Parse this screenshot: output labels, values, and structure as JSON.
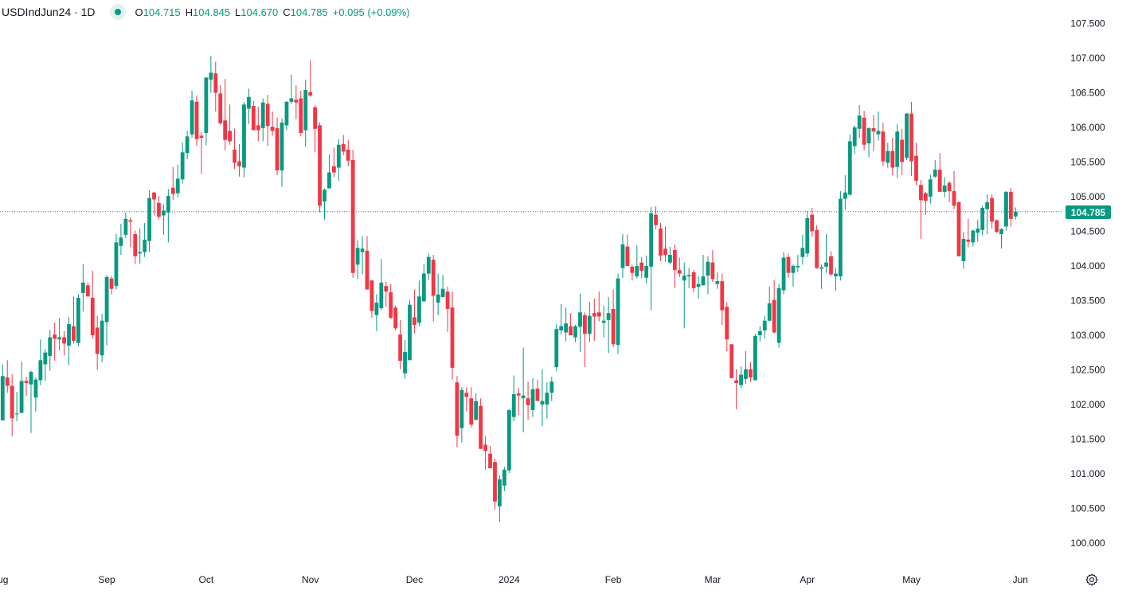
{
  "header": {
    "symbol": "USDIndJun24 · 1D",
    "status_icon": "market-open-dot-icon",
    "o_label": "O",
    "o_value": "104.715",
    "h_label": "H",
    "h_value": "104.845",
    "l_label": "L",
    "l_value": "104.670",
    "c_label": "C",
    "c_value": "104.785",
    "change": "+0.095 (+0.09%)"
  },
  "price_tag": "104.785",
  "settings_icon": "gear-icon",
  "colors": {
    "up": "#089981",
    "down": "#F23645",
    "price_line": "#089981"
  },
  "chart_data": {
    "type": "candlestick",
    "title": "",
    "ylim": [
      100.0,
      107.5
    ],
    "grid": false,
    "last_price": 104.785,
    "y_ticks": [
      "100.000",
      "100.500",
      "101.000",
      "101.500",
      "102.000",
      "102.500",
      "103.000",
      "103.500",
      "104.000",
      "104.500",
      "105.000",
      "105.500",
      "106.000",
      "106.500",
      "107.000",
      "107.500"
    ],
    "x_ticks": [
      {
        "label": "Aug",
        "bar": -0.6
      },
      {
        "label": "Sep",
        "bar": 22
      },
      {
        "label": "Oct",
        "bar": 43
      },
      {
        "label": "Nov",
        "bar": 65
      },
      {
        "label": "Dec",
        "bar": 87
      },
      {
        "label": "2024",
        "bar": 107
      },
      {
        "label": "Feb",
        "bar": 129
      },
      {
        "label": "Mar",
        "bar": 150
      },
      {
        "label": "Apr",
        "bar": 170
      },
      {
        "label": "May",
        "bar": 192
      },
      {
        "label": "Jun",
        "bar": 215
      }
    ],
    "ohlc_fields": [
      "open",
      "high",
      "low",
      "close"
    ],
    "candles": [
      [
        101.77,
        102.58,
        101.77,
        102.41
      ],
      [
        102.39,
        102.64,
        102.17,
        102.27
      ],
      [
        102.27,
        102.44,
        101.54,
        101.8
      ],
      [
        101.86,
        102.18,
        101.76,
        101.87
      ],
      [
        101.88,
        102.62,
        101.87,
        102.34
      ],
      [
        102.34,
        102.4,
        102.12,
        102.31
      ],
      [
        102.29,
        102.49,
        101.59,
        102.47
      ],
      [
        102.1,
        102.39,
        101.9,
        102.36
      ],
      [
        102.35,
        102.94,
        102.28,
        102.64
      ],
      [
        102.58,
        102.8,
        102.34,
        102.75
      ],
      [
        102.7,
        103.08,
        102.49,
        102.97
      ],
      [
        103.01,
        103.18,
        102.63,
        102.95
      ],
      [
        102.94,
        103.25,
        102.78,
        102.97
      ],
      [
        102.97,
        103.06,
        102.71,
        102.88
      ],
      [
        102.85,
        103.26,
        102.57,
        103.16
      ],
      [
        103.13,
        103.56,
        102.88,
        102.92
      ],
      [
        102.89,
        103.59,
        102.84,
        103.54
      ],
      [
        103.61,
        104.03,
        103.34,
        103.76
      ],
      [
        103.72,
        103.76,
        103.56,
        103.56
      ],
      [
        103.54,
        103.93,
        102.95,
        103.0
      ],
      [
        103.11,
        103.28,
        102.5,
        102.73
      ],
      [
        102.71,
        103.31,
        102.61,
        103.21
      ],
      [
        103.19,
        103.87,
        102.85,
        103.84
      ],
      [
        103.82,
        103.85,
        103.59,
        103.67
      ],
      [
        103.71,
        104.46,
        103.66,
        104.34
      ],
      [
        104.29,
        104.61,
        104.16,
        104.41
      ],
      [
        104.45,
        104.77,
        104.4,
        104.68
      ],
      [
        104.66,
        104.7,
        104.27,
        104.64
      ],
      [
        104.46,
        104.51,
        104.03,
        104.14
      ],
      [
        104.18,
        104.54,
        104.03,
        104.2
      ],
      [
        104.2,
        104.62,
        104.13,
        104.38
      ],
      [
        104.36,
        105.09,
        104.2,
        104.98
      ],
      [
        105.06,
        105.07,
        104.73,
        104.96
      ],
      [
        104.91,
        105.01,
        104.67,
        104.71
      ],
      [
        104.73,
        104.89,
        104.45,
        104.8
      ],
      [
        104.77,
        105.11,
        104.34,
        105.01
      ],
      [
        105.13,
        105.43,
        104.95,
        105.04
      ],
      [
        105.05,
        105.46,
        104.99,
        105.26
      ],
      [
        105.25,
        105.78,
        105.19,
        105.64
      ],
      [
        105.63,
        105.95,
        105.54,
        105.87
      ],
      [
        105.9,
        106.53,
        105.85,
        106.39
      ],
      [
        106.37,
        106.46,
        105.73,
        105.83
      ],
      [
        105.88,
        105.93,
        105.33,
        105.85
      ],
      [
        105.92,
        106.72,
        105.74,
        106.72
      ],
      [
        106.69,
        107.03,
        106.5,
        106.79
      ],
      [
        106.78,
        106.95,
        106.23,
        106.5
      ],
      [
        106.49,
        106.61,
        106.04,
        106.06
      ],
      [
        106.1,
        106.7,
        105.67,
        105.82
      ],
      [
        105.95,
        106.33,
        105.75,
        105.8
      ],
      [
        105.68,
        105.98,
        105.4,
        105.49
      ],
      [
        105.51,
        105.76,
        105.29,
        105.44
      ],
      [
        105.42,
        106.37,
        105.28,
        106.33
      ],
      [
        106.27,
        106.56,
        106.05,
        106.44
      ],
      [
        106.31,
        106.38,
        105.96,
        105.96
      ],
      [
        106.03,
        106.3,
        105.8,
        105.96
      ],
      [
        105.99,
        106.42,
        105.8,
        106.36
      ],
      [
        106.34,
        106.47,
        105.73,
        106.02
      ],
      [
        106.01,
        106.23,
        105.88,
        105.95
      ],
      [
        105.99,
        106.14,
        105.31,
        105.38
      ],
      [
        105.38,
        106.13,
        105.14,
        106.07
      ],
      [
        106.03,
        106.38,
        105.96,
        106.37
      ],
      [
        106.37,
        106.76,
        106.34,
        106.42
      ],
      [
        106.4,
        106.61,
        106.12,
        106.36
      ],
      [
        106.42,
        106.53,
        105.87,
        105.92
      ],
      [
        105.96,
        106.69,
        105.72,
        106.54
      ],
      [
        106.51,
        106.97,
        106.44,
        106.46
      ],
      [
        106.29,
        106.32,
        105.64,
        105.98
      ],
      [
        106.03,
        106.07,
        104.77,
        104.87
      ],
      [
        104.93,
        105.12,
        104.67,
        105.1
      ],
      [
        105.12,
        105.61,
        105.12,
        105.35
      ],
      [
        105.44,
        105.71,
        105.28,
        105.35
      ],
      [
        105.42,
        105.83,
        105.23,
        105.75
      ],
      [
        105.76,
        105.89,
        105.6,
        105.65
      ],
      [
        105.68,
        105.82,
        105.44,
        105.52
      ],
      [
        105.53,
        105.68,
        103.83,
        103.9
      ],
      [
        104.02,
        104.37,
        103.81,
        104.26
      ],
      [
        104.2,
        104.43,
        103.88,
        104.25
      ],
      [
        104.22,
        104.43,
        103.66,
        103.66
      ],
      [
        103.79,
        103.8,
        103.25,
        103.35
      ],
      [
        103.29,
        103.59,
        103.06,
        103.47
      ],
      [
        103.39,
        104.1,
        103.36,
        103.76
      ],
      [
        103.71,
        103.77,
        103.41,
        103.63
      ],
      [
        103.62,
        103.74,
        103.24,
        103.25
      ],
      [
        103.4,
        103.43,
        103.07,
        103.1
      ],
      [
        103.01,
        103.22,
        102.51,
        102.63
      ],
      [
        102.45,
        102.93,
        102.37,
        102.76
      ],
      [
        102.64,
        103.51,
        102.64,
        103.44
      ],
      [
        103.26,
        103.66,
        103.03,
        103.15
      ],
      [
        103.18,
        103.79,
        103.13,
        103.56
      ],
      [
        103.49,
        104.03,
        103.48,
        103.89
      ],
      [
        103.89,
        104.18,
        103.8,
        104.13
      ],
      [
        104.09,
        104.16,
        103.2,
        103.57
      ],
      [
        103.47,
        103.89,
        103.29,
        103.59
      ],
      [
        103.55,
        103.87,
        103.55,
        103.67
      ],
      [
        103.63,
        103.7,
        103.05,
        103.38
      ],
      [
        103.4,
        103.63,
        102.36,
        102.53
      ],
      [
        102.32,
        102.41,
        101.38,
        101.55
      ],
      [
        101.66,
        102.25,
        101.45,
        102.21
      ],
      [
        102.17,
        102.25,
        101.9,
        102.11
      ],
      [
        102.09,
        102.25,
        101.67,
        101.71
      ],
      [
        101.78,
        102.16,
        101.77,
        102.05
      ],
      [
        101.98,
        102.09,
        101.36,
        101.36
      ],
      [
        101.42,
        101.54,
        101.06,
        101.33
      ],
      [
        101.29,
        101.4,
        101.08,
        101.08
      ],
      [
        101.17,
        101.22,
        100.48,
        100.6
      ],
      [
        100.53,
        100.98,
        100.3,
        100.92
      ],
      [
        100.83,
        101.1,
        100.75,
        101.06
      ],
      [
        101.05,
        101.93,
        101.01,
        101.92
      ],
      [
        101.82,
        102.42,
        101.76,
        102.15
      ],
      [
        102.16,
        102.24,
        101.85,
        102.13
      ],
      [
        102.09,
        102.82,
        101.6,
        102.13
      ],
      [
        102.09,
        102.33,
        101.78,
        101.99
      ],
      [
        101.92,
        102.38,
        101.82,
        102.22
      ],
      [
        102.23,
        102.36,
        102.05,
        102.05
      ],
      [
        102.0,
        102.51,
        101.69,
        102.05
      ],
      [
        102.0,
        102.32,
        101.8,
        102.17
      ],
      [
        102.17,
        102.4,
        102.05,
        102.33
      ],
      [
        102.54,
        103.16,
        102.48,
        103.09
      ],
      [
        103.07,
        103.45,
        103.01,
        103.13
      ],
      [
        103.04,
        103.4,
        102.91,
        103.17
      ],
      [
        103.13,
        103.32,
        103.0,
        103.0
      ],
      [
        102.97,
        103.15,
        102.9,
        103.13
      ],
      [
        103.12,
        103.6,
        102.76,
        103.33
      ],
      [
        103.29,
        103.33,
        102.54,
        103.02
      ],
      [
        103.02,
        103.48,
        102.9,
        103.28
      ],
      [
        103.32,
        103.53,
        102.92,
        103.27
      ],
      [
        103.33,
        103.63,
        103.2,
        103.27
      ],
      [
        103.18,
        103.43,
        102.97,
        103.21
      ],
      [
        103.22,
        103.55,
        102.74,
        103.32
      ],
      [
        103.38,
        103.66,
        102.83,
        102.87
      ],
      [
        102.86,
        103.89,
        102.73,
        103.82
      ],
      [
        103.97,
        104.46,
        103.83,
        104.31
      ],
      [
        104.28,
        104.45,
        104.0,
        104.0
      ],
      [
        103.99,
        104.02,
        103.79,
        103.9
      ],
      [
        103.85,
        104.3,
        103.82,
        104.0
      ],
      [
        104.05,
        104.13,
        103.82,
        103.93
      ],
      [
        103.83,
        104.15,
        103.75,
        104.0
      ],
      [
        103.99,
        104.85,
        103.36,
        104.76
      ],
      [
        104.74,
        104.86,
        104.53,
        104.59
      ],
      [
        104.54,
        104.62,
        104.07,
        104.15
      ],
      [
        104.25,
        104.57,
        104.06,
        104.16
      ],
      [
        104.05,
        104.28,
        104.02,
        104.16
      ],
      [
        104.23,
        104.31,
        103.68,
        103.94
      ],
      [
        103.94,
        104.12,
        103.84,
        103.89
      ],
      [
        103.79,
        104.05,
        103.1,
        103.86
      ],
      [
        103.85,
        103.97,
        103.68,
        103.87
      ],
      [
        103.91,
        103.94,
        103.62,
        103.68
      ],
      [
        103.7,
        103.85,
        103.53,
        103.74
      ],
      [
        103.72,
        104.16,
        103.72,
        103.85
      ],
      [
        103.86,
        104.14,
        103.59,
        104.06
      ],
      [
        104.05,
        104.23,
        103.77,
        103.81
      ],
      [
        103.74,
        103.91,
        103.67,
        103.78
      ],
      [
        103.78,
        103.89,
        103.15,
        103.36
      ],
      [
        103.41,
        103.48,
        102.77,
        102.94
      ],
      [
        102.87,
        102.87,
        102.38,
        102.38
      ],
      [
        102.35,
        102.51,
        101.93,
        102.31
      ],
      [
        102.28,
        102.55,
        102.24,
        102.43
      ],
      [
        102.37,
        102.77,
        102.3,
        102.51
      ],
      [
        102.51,
        102.61,
        102.33,
        102.39
      ],
      [
        102.35,
        103.02,
        102.35,
        102.99
      ],
      [
        103.0,
        103.13,
        102.91,
        103.06
      ],
      [
        103.07,
        103.28,
        102.95,
        103.21
      ],
      [
        103.21,
        103.7,
        103.2,
        103.46
      ],
      [
        103.51,
        103.8,
        103.03,
        103.04
      ],
      [
        102.89,
        103.74,
        102.82,
        103.68
      ],
      [
        103.65,
        104.2,
        103.59,
        104.12
      ],
      [
        104.13,
        104.18,
        103.83,
        103.9
      ],
      [
        103.9,
        104.02,
        103.7,
        104.0
      ],
      [
        103.98,
        104.16,
        103.91,
        104.0
      ],
      [
        104.13,
        104.45,
        104.02,
        104.26
      ],
      [
        104.18,
        104.79,
        104.13,
        104.69
      ],
      [
        104.74,
        104.84,
        104.42,
        104.5
      ],
      [
        104.52,
        104.59,
        103.96,
        103.97
      ],
      [
        103.96,
        104.02,
        103.67,
        103.98
      ],
      [
        103.99,
        104.46,
        103.9,
        104.05
      ],
      [
        104.14,
        104.21,
        103.85,
        103.88
      ],
      [
        103.85,
        103.97,
        103.64,
        103.89
      ],
      [
        103.85,
        105.08,
        103.79,
        104.97
      ],
      [
        104.97,
        105.31,
        104.81,
        105.06
      ],
      [
        105.03,
        105.9,
        105.01,
        105.8
      ],
      [
        105.73,
        106.03,
        105.62,
        106.0
      ],
      [
        105.98,
        106.32,
        105.85,
        106.17
      ],
      [
        106.14,
        106.24,
        105.67,
        105.75
      ],
      [
        105.77,
        106.0,
        105.57,
        105.99
      ],
      [
        105.99,
        106.18,
        105.66,
        105.94
      ],
      [
        105.9,
        106.23,
        105.81,
        105.95
      ],
      [
        105.94,
        106.07,
        105.44,
        105.51
      ],
      [
        105.49,
        105.78,
        105.42,
        105.66
      ],
      [
        105.66,
        105.85,
        105.31,
        105.42
      ],
      [
        105.43,
        106.05,
        105.27,
        105.94
      ],
      [
        105.82,
        105.98,
        105.31,
        105.5
      ],
      [
        105.56,
        106.21,
        105.53,
        106.2
      ],
      [
        106.2,
        106.37,
        105.3,
        105.51
      ],
      [
        105.59,
        105.78,
        105.17,
        105.23
      ],
      [
        105.17,
        105.24,
        104.39,
        104.95
      ],
      [
        105.05,
        105.07,
        104.74,
        104.94
      ],
      [
        105.0,
        105.32,
        104.9,
        105.25
      ],
      [
        105.29,
        105.53,
        105.27,
        105.39
      ],
      [
        105.39,
        105.63,
        105.07,
        105.07
      ],
      [
        105.07,
        105.28,
        104.99,
        105.16
      ],
      [
        105.2,
        105.23,
        104.92,
        105.08
      ],
      [
        105.08,
        105.37,
        104.82,
        104.87
      ],
      [
        104.92,
        104.93,
        104.14,
        104.14
      ],
      [
        104.07,
        104.49,
        103.96,
        104.39
      ],
      [
        104.38,
        104.68,
        104.27,
        104.35
      ],
      [
        104.34,
        104.53,
        104.28,
        104.51
      ],
      [
        104.48,
        104.67,
        104.35,
        104.54
      ],
      [
        104.52,
        104.87,
        104.44,
        104.84
      ],
      [
        104.82,
        105.03,
        104.46,
        104.92
      ],
      [
        104.98,
        105.03,
        104.54,
        104.64
      ],
      [
        104.66,
        104.67,
        104.48,
        104.49
      ],
      [
        104.46,
        104.55,
        104.25,
        104.53
      ],
      [
        104.57,
        105.08,
        104.51,
        105.07
      ],
      [
        105.07,
        105.13,
        104.57,
        104.68
      ],
      [
        104.715,
        104.845,
        104.67,
        104.785
      ]
    ]
  }
}
